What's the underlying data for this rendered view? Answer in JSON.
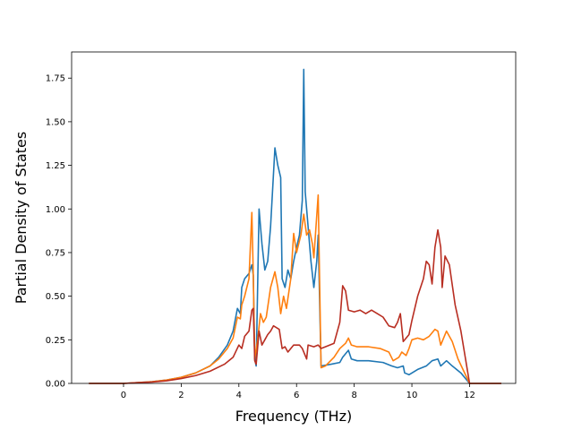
{
  "chart_data": {
    "type": "line",
    "title": "",
    "xlabel": "Frequency (THz)",
    "ylabel": "Partial Density of States",
    "xlim": [
      -1.8,
      13.6
    ],
    "ylim": [
      0.0,
      1.9
    ],
    "xticks": [
      0,
      2,
      4,
      6,
      8,
      10,
      12
    ],
    "xtick_labels": [
      "0",
      "2",
      "4",
      "6",
      "8",
      "10",
      "12"
    ],
    "yticks": [
      0.0,
      0.25,
      0.5,
      0.75,
      1.0,
      1.25,
      1.5,
      1.75
    ],
    "ytick_labels": [
      "0.00",
      "0.25",
      "0.50",
      "0.75",
      "1.00",
      "1.25",
      "1.50",
      "1.75"
    ],
    "grid": false,
    "legend": "none",
    "series": [
      {
        "color": "#1f77b4",
        "points": [
          [
            -1.2,
            0
          ],
          [
            0,
            0
          ],
          [
            0.5,
            0.005
          ],
          [
            1,
            0.01
          ],
          [
            1.5,
            0.02
          ],
          [
            2,
            0.035
          ],
          [
            2.5,
            0.06
          ],
          [
            3,
            0.1
          ],
          [
            3.3,
            0.15
          ],
          [
            3.6,
            0.22
          ],
          [
            3.8,
            0.3
          ],
          [
            3.95,
            0.43
          ],
          [
            4.05,
            0.4
          ],
          [
            4.1,
            0.55
          ],
          [
            4.2,
            0.6
          ],
          [
            4.35,
            0.63
          ],
          [
            4.45,
            0.68
          ],
          [
            4.5,
            0.62
          ],
          [
            4.55,
            0.14
          ],
          [
            4.6,
            0.1
          ],
          [
            4.7,
            1.0
          ],
          [
            4.8,
            0.8
          ],
          [
            4.9,
            0.65
          ],
          [
            5.0,
            0.7
          ],
          [
            5.1,
            0.9
          ],
          [
            5.25,
            1.35
          ],
          [
            5.35,
            1.25
          ],
          [
            5.45,
            1.18
          ],
          [
            5.5,
            0.6
          ],
          [
            5.6,
            0.55
          ],
          [
            5.7,
            0.65
          ],
          [
            5.8,
            0.6
          ],
          [
            5.9,
            0.7
          ],
          [
            6.0,
            0.78
          ],
          [
            6.1,
            0.85
          ],
          [
            6.2,
            1.05
          ],
          [
            6.25,
            1.8
          ],
          [
            6.3,
            1.1
          ],
          [
            6.4,
            0.9
          ],
          [
            6.5,
            0.7
          ],
          [
            6.6,
            0.55
          ],
          [
            6.7,
            0.7
          ],
          [
            6.75,
            0.85
          ],
          [
            6.85,
            0.1
          ],
          [
            7.2,
            0.11
          ],
          [
            7.5,
            0.12
          ],
          [
            7.6,
            0.15
          ],
          [
            7.7,
            0.17
          ],
          [
            7.8,
            0.19
          ],
          [
            7.9,
            0.14
          ],
          [
            8.1,
            0.13
          ],
          [
            8.5,
            0.13
          ],
          [
            9.0,
            0.12
          ],
          [
            9.3,
            0.1
          ],
          [
            9.5,
            0.09
          ],
          [
            9.7,
            0.1
          ],
          [
            9.75,
            0.06
          ],
          [
            9.9,
            0.05
          ],
          [
            10.2,
            0.08
          ],
          [
            10.5,
            0.1
          ],
          [
            10.7,
            0.13
          ],
          [
            10.9,
            0.14
          ],
          [
            11.0,
            0.1
          ],
          [
            11.2,
            0.13
          ],
          [
            11.4,
            0.1
          ],
          [
            11.7,
            0.06
          ],
          [
            11.9,
            0.02
          ],
          [
            12.0,
            0.0
          ],
          [
            13.1,
            0
          ]
        ]
      },
      {
        "color": "#ff7f0e",
        "points": [
          [
            -1.2,
            0
          ],
          [
            0,
            0
          ],
          [
            0.5,
            0.005
          ],
          [
            1,
            0.01
          ],
          [
            1.5,
            0.02
          ],
          [
            2,
            0.035
          ],
          [
            2.5,
            0.06
          ],
          [
            3,
            0.1
          ],
          [
            3.3,
            0.14
          ],
          [
            3.6,
            0.2
          ],
          [
            3.8,
            0.26
          ],
          [
            3.95,
            0.38
          ],
          [
            4.05,
            0.37
          ],
          [
            4.1,
            0.45
          ],
          [
            4.2,
            0.5
          ],
          [
            4.35,
            0.6
          ],
          [
            4.45,
            0.98
          ],
          [
            4.5,
            0.62
          ],
          [
            4.55,
            0.14
          ],
          [
            4.65,
            0.25
          ],
          [
            4.75,
            0.4
          ],
          [
            4.85,
            0.35
          ],
          [
            4.95,
            0.38
          ],
          [
            5.1,
            0.55
          ],
          [
            5.25,
            0.64
          ],
          [
            5.35,
            0.55
          ],
          [
            5.45,
            0.4
          ],
          [
            5.55,
            0.5
          ],
          [
            5.65,
            0.43
          ],
          [
            5.8,
            0.6
          ],
          [
            5.9,
            0.86
          ],
          [
            6.0,
            0.75
          ],
          [
            6.15,
            0.85
          ],
          [
            6.25,
            0.97
          ],
          [
            6.35,
            0.85
          ],
          [
            6.45,
            0.88
          ],
          [
            6.55,
            0.8
          ],
          [
            6.6,
            0.72
          ],
          [
            6.75,
            1.08
          ],
          [
            6.85,
            0.09
          ],
          [
            7.0,
            0.1
          ],
          [
            7.3,
            0.15
          ],
          [
            7.5,
            0.2
          ],
          [
            7.7,
            0.23
          ],
          [
            7.8,
            0.26
          ],
          [
            7.9,
            0.22
          ],
          [
            8.1,
            0.21
          ],
          [
            8.5,
            0.21
          ],
          [
            8.9,
            0.2
          ],
          [
            9.2,
            0.18
          ],
          [
            9.35,
            0.13
          ],
          [
            9.55,
            0.15
          ],
          [
            9.65,
            0.18
          ],
          [
            9.8,
            0.16
          ],
          [
            9.9,
            0.2
          ],
          [
            10.0,
            0.25
          ],
          [
            10.2,
            0.26
          ],
          [
            10.4,
            0.25
          ],
          [
            10.6,
            0.27
          ],
          [
            10.8,
            0.31
          ],
          [
            10.9,
            0.3
          ],
          [
            11.0,
            0.22
          ],
          [
            11.2,
            0.3
          ],
          [
            11.4,
            0.24
          ],
          [
            11.6,
            0.14
          ],
          [
            11.8,
            0.07
          ],
          [
            12.0,
            0.0
          ],
          [
            13.1,
            0
          ]
        ]
      },
      {
        "color": "#b82e22",
        "points": [
          [
            -1.2,
            0
          ],
          [
            0,
            0
          ],
          [
            0.5,
            0.004
          ],
          [
            1,
            0.008
          ],
          [
            1.5,
            0.015
          ],
          [
            2,
            0.028
          ],
          [
            2.5,
            0.045
          ],
          [
            3,
            0.07
          ],
          [
            3.5,
            0.11
          ],
          [
            3.8,
            0.15
          ],
          [
            4.0,
            0.22
          ],
          [
            4.1,
            0.2
          ],
          [
            4.2,
            0.27
          ],
          [
            4.35,
            0.3
          ],
          [
            4.45,
            0.42
          ],
          [
            4.5,
            0.43
          ],
          [
            4.55,
            0.13
          ],
          [
            4.6,
            0.11
          ],
          [
            4.7,
            0.3
          ],
          [
            4.8,
            0.22
          ],
          [
            4.9,
            0.25
          ],
          [
            5.0,
            0.28
          ],
          [
            5.1,
            0.3
          ],
          [
            5.2,
            0.33
          ],
          [
            5.3,
            0.32
          ],
          [
            5.4,
            0.31
          ],
          [
            5.5,
            0.2
          ],
          [
            5.6,
            0.21
          ],
          [
            5.7,
            0.18
          ],
          [
            5.9,
            0.22
          ],
          [
            6.1,
            0.22
          ],
          [
            6.2,
            0.2
          ],
          [
            6.35,
            0.14
          ],
          [
            6.4,
            0.22
          ],
          [
            6.6,
            0.21
          ],
          [
            6.75,
            0.22
          ],
          [
            6.85,
            0.2
          ],
          [
            7.0,
            0.21
          ],
          [
            7.3,
            0.23
          ],
          [
            7.5,
            0.35
          ],
          [
            7.6,
            0.56
          ],
          [
            7.7,
            0.53
          ],
          [
            7.8,
            0.42
          ],
          [
            8.0,
            0.41
          ],
          [
            8.2,
            0.42
          ],
          [
            8.4,
            0.4
          ],
          [
            8.6,
            0.42
          ],
          [
            8.8,
            0.4
          ],
          [
            9.0,
            0.38
          ],
          [
            9.2,
            0.33
          ],
          [
            9.4,
            0.32
          ],
          [
            9.5,
            0.35
          ],
          [
            9.6,
            0.4
          ],
          [
            9.7,
            0.24
          ],
          [
            9.9,
            0.28
          ],
          [
            10.0,
            0.36
          ],
          [
            10.2,
            0.5
          ],
          [
            10.4,
            0.6
          ],
          [
            10.5,
            0.7
          ],
          [
            10.6,
            0.68
          ],
          [
            10.7,
            0.57
          ],
          [
            10.8,
            0.78
          ],
          [
            10.9,
            0.88
          ],
          [
            11.0,
            0.78
          ],
          [
            11.05,
            0.55
          ],
          [
            11.15,
            0.73
          ],
          [
            11.3,
            0.68
          ],
          [
            11.5,
            0.45
          ],
          [
            11.7,
            0.3
          ],
          [
            11.85,
            0.15
          ],
          [
            12.0,
            0.0
          ],
          [
            13.1,
            0
          ]
        ]
      }
    ]
  }
}
